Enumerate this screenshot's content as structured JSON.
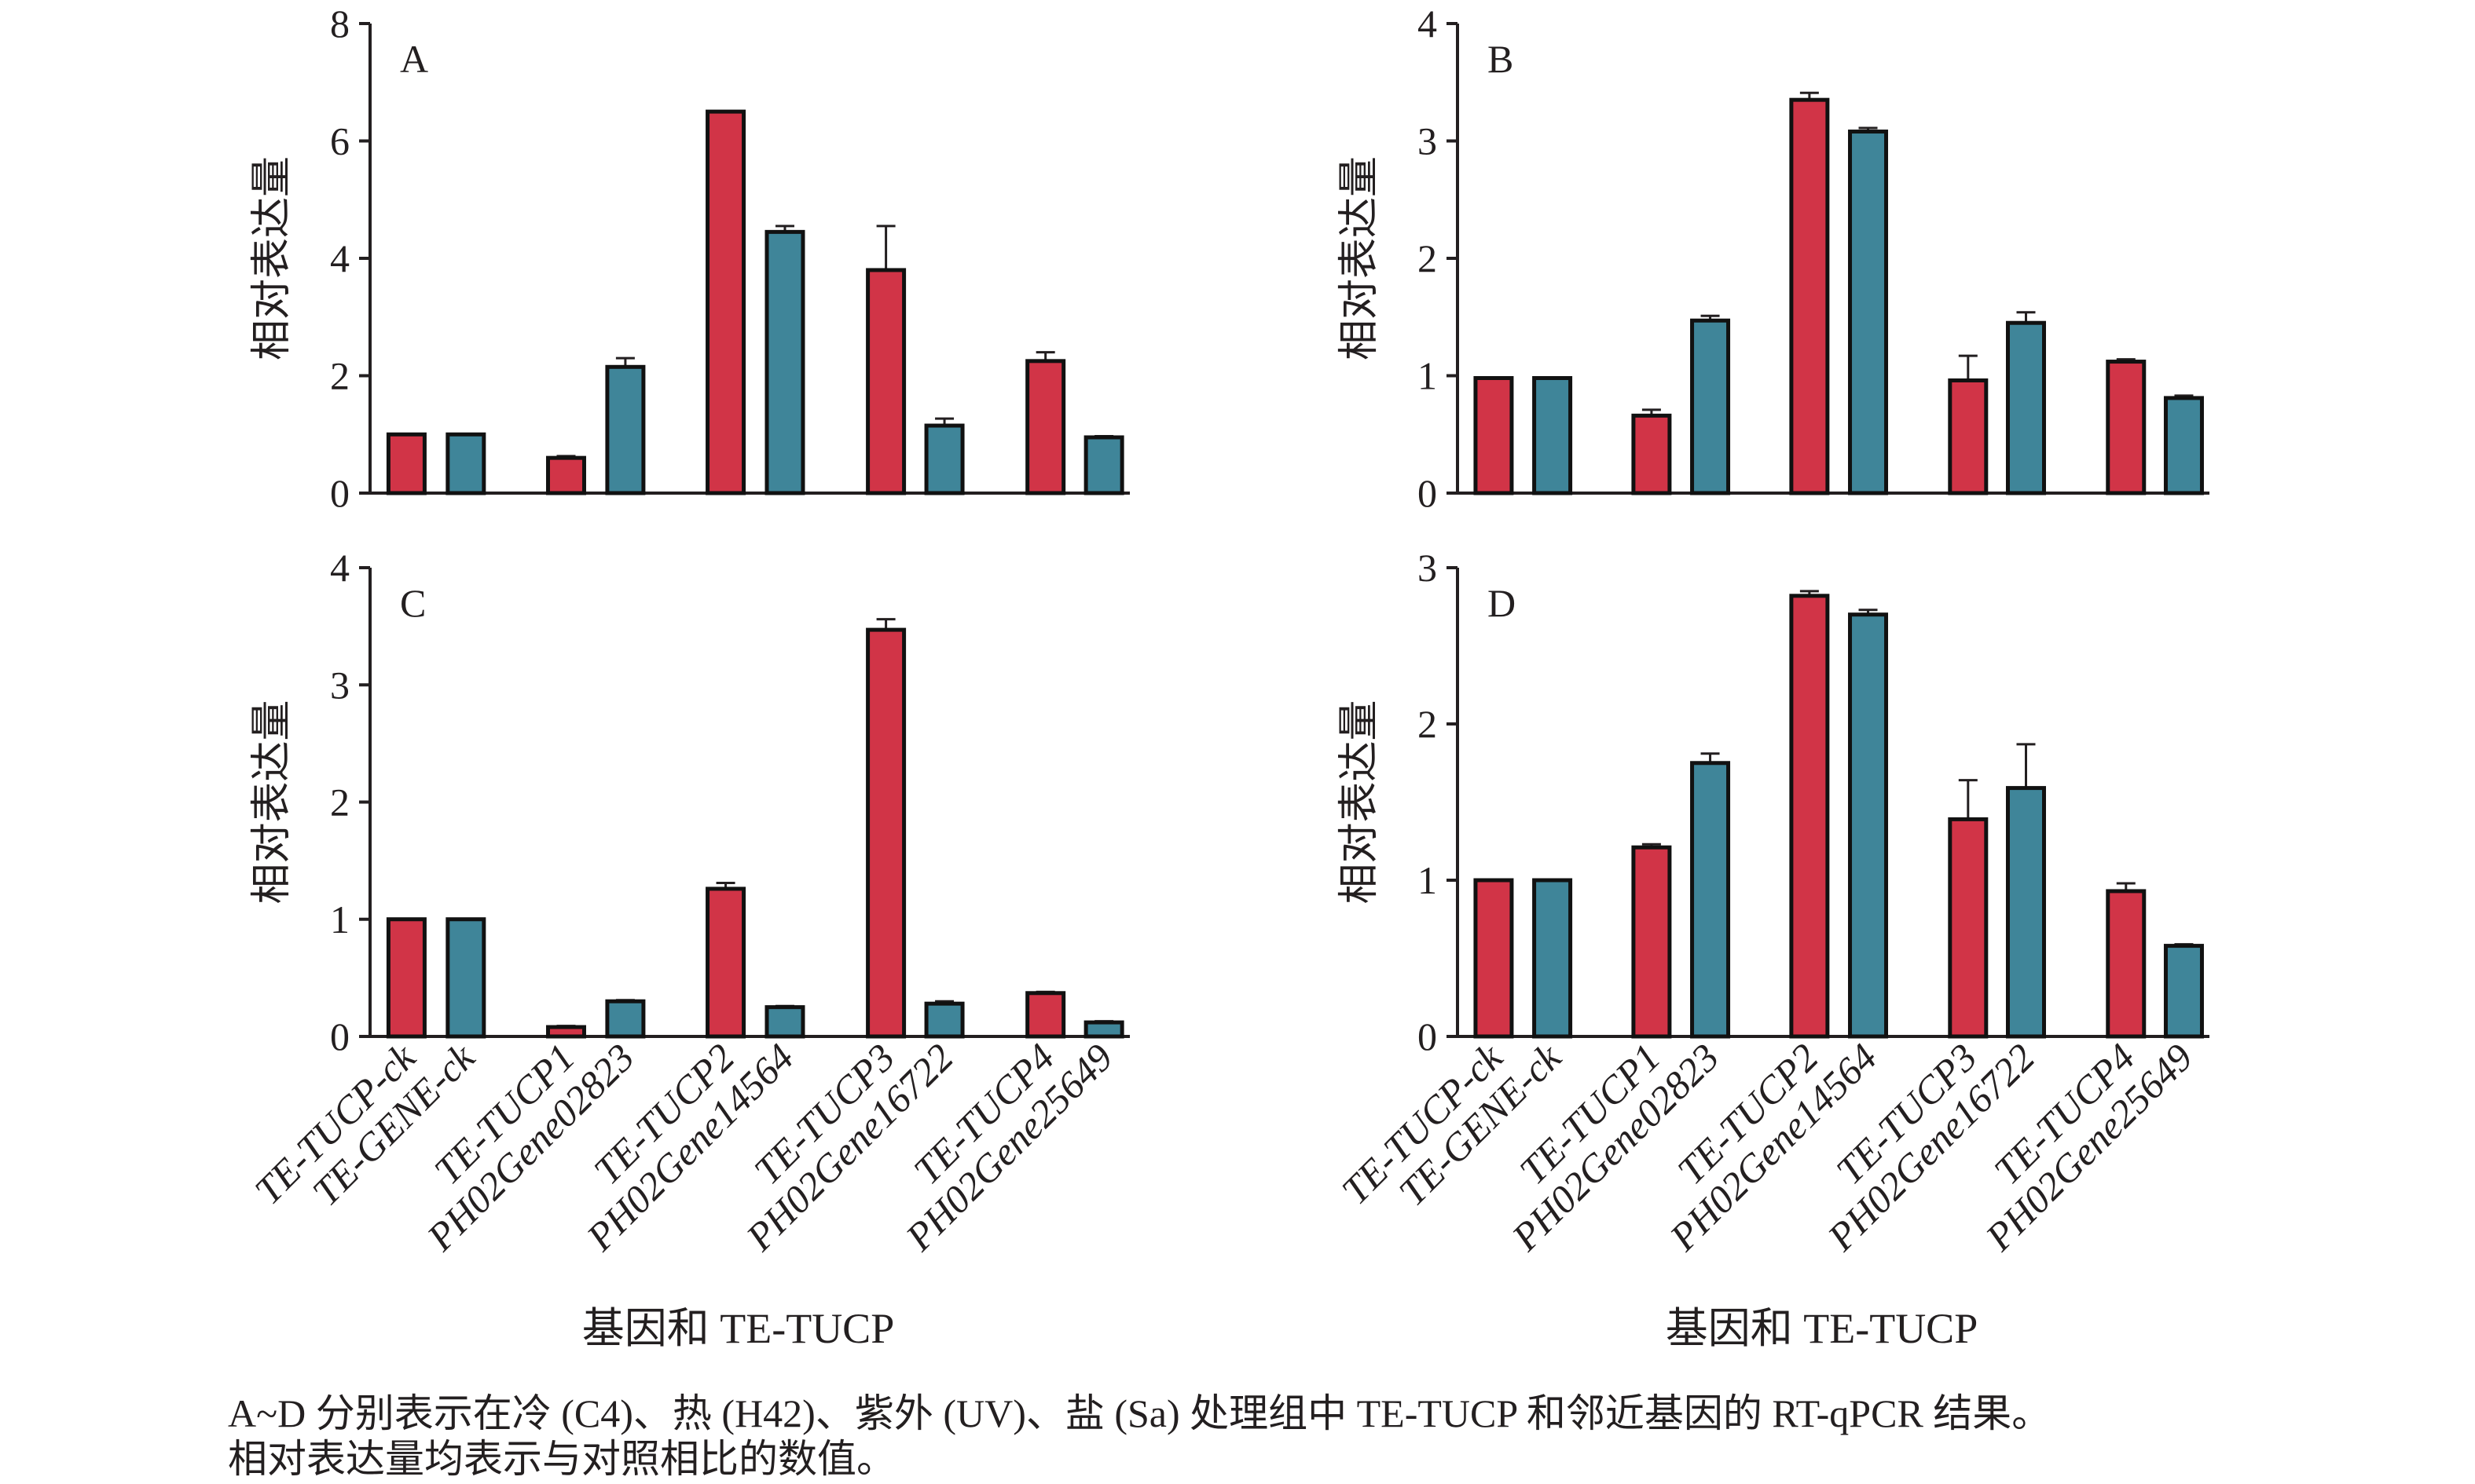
{
  "colors": {
    "tucp": "#d13447",
    "gene": "#3f8599",
    "outline": "#111111"
  },
  "categories": [
    "TE-TUCP-ck",
    "TE-GENE-ck",
    "TE-TUCP1",
    "PH02Gene02823",
    "TE-TUCP2",
    "PH02Gene14564",
    "TE-TUCP3",
    "PH02Gene16722",
    "TE-TUCP4",
    "PH02Gene25649"
  ],
  "xlabel": "基因和 TE-TUCP",
  "ylabel": "相对表达量",
  "chart_data": [
    {
      "type": "bar",
      "panel": "A",
      "ylim": [
        0,
        8
      ],
      "yticks": [
        0,
        2,
        4,
        6,
        8
      ],
      "ylabel": "相对表达量",
      "values": [
        1.0,
        1.0,
        0.6,
        2.15,
        6.5,
        4.45,
        3.8,
        1.15,
        2.25,
        0.95
      ],
      "errors": [
        0,
        0,
        0.03,
        0.15,
        0,
        0.1,
        0.75,
        0.12,
        0.15,
        0.02
      ]
    },
    {
      "type": "bar",
      "panel": "B",
      "ylim": [
        0,
        4
      ],
      "yticks": [
        0,
        1,
        2,
        3,
        4
      ],
      "ylabel": "相对表达量",
      "values": [
        0.98,
        0.98,
        0.66,
        1.47,
        3.35,
        3.08,
        0.96,
        1.45,
        1.12,
        0.81
      ],
      "errors": [
        0,
        0,
        0.05,
        0.04,
        0.06,
        0.03,
        0.21,
        0.09,
        0.02,
        0.02
      ]
    },
    {
      "type": "bar",
      "panel": "C",
      "ylim": [
        0,
        4
      ],
      "yticks": [
        0,
        1,
        2,
        3,
        4
      ],
      "ylabel": "相对表达量",
      "xlabel": "基因和 TE-TUCP",
      "values": [
        1.0,
        1.0,
        0.08,
        0.3,
        1.26,
        0.25,
        3.47,
        0.28,
        0.37,
        0.12
      ],
      "errors": [
        0,
        0,
        0.01,
        0.01,
        0.05,
        0.01,
        0.09,
        0.02,
        0.01,
        0.01
      ]
    },
    {
      "type": "bar",
      "panel": "D",
      "ylim": [
        0,
        3
      ],
      "yticks": [
        0,
        1,
        2,
        3
      ],
      "ylabel": "相对表达量",
      "xlabel": "基因和 TE-TUCP",
      "values": [
        1.0,
        1.0,
        1.21,
        1.75,
        2.82,
        2.7,
        1.39,
        1.59,
        0.93,
        0.58
      ],
      "errors": [
        0,
        0,
        0.02,
        0.06,
        0.03,
        0.03,
        0.25,
        0.28,
        0.05,
        0.01
      ]
    }
  ],
  "caption": {
    "line1": "A~D 分别表示在冷 (C4)、热 (H42)、紫外 (UV)、盐 (Sa) 处理组中 TE-TUCP 和邻近基因的 RT-qPCR 结果。",
    "line2": "相对表达量均表示与对照相比的数值。"
  }
}
